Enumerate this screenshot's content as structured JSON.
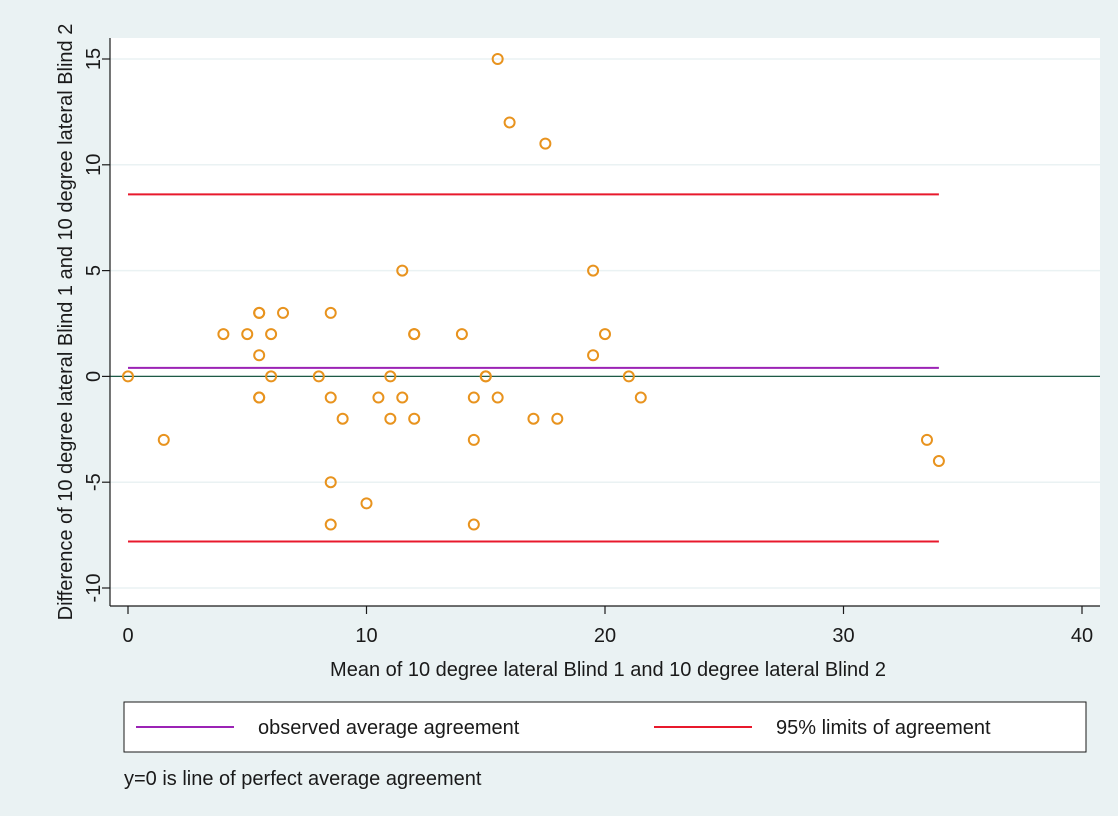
{
  "chart_data": {
    "type": "scatter",
    "title": "",
    "xlabel": "Mean of 10 degree lateral Blind 1 and 10 degree lateral Blind 2",
    "ylabel": "Difference of 10 degree lateral Blind 1 and 10 degree lateral Blind 2",
    "xlim": [
      0,
      40
    ],
    "ylim": [
      -10,
      15
    ],
    "xticks": [
      0,
      10,
      20,
      30,
      40
    ],
    "yticks": [
      -10,
      -5,
      0,
      5,
      10,
      15
    ],
    "grid": "horizontal",
    "legend_position": "bottom",
    "points": [
      [
        0,
        0
      ],
      [
        1.5,
        -3
      ],
      [
        4,
        2
      ],
      [
        5,
        2
      ],
      [
        5.5,
        3
      ],
      [
        5.5,
        3
      ],
      [
        5.5,
        1
      ],
      [
        5.5,
        -1
      ],
      [
        5.5,
        -1
      ],
      [
        6,
        2
      ],
      [
        6,
        0
      ],
      [
        6.5,
        3
      ],
      [
        8,
        0
      ],
      [
        8.5,
        3
      ],
      [
        8.5,
        -1
      ],
      [
        8.5,
        -5
      ],
      [
        8.5,
        -7
      ],
      [
        9,
        -2
      ],
      [
        10,
        -6
      ],
      [
        10.5,
        -1
      ],
      [
        11,
        0
      ],
      [
        11,
        -2
      ],
      [
        11.5,
        5
      ],
      [
        11.5,
        -1
      ],
      [
        12,
        2
      ],
      [
        12,
        2
      ],
      [
        12,
        -2
      ],
      [
        14,
        2
      ],
      [
        14.5,
        -1
      ],
      [
        14.5,
        -3
      ],
      [
        14.5,
        -7
      ],
      [
        15,
        0
      ],
      [
        15,
        0
      ],
      [
        15.5,
        15
      ],
      [
        15.5,
        -1
      ],
      [
        16,
        12
      ],
      [
        17,
        -2
      ],
      [
        17.5,
        11
      ],
      [
        18,
        -2
      ],
      [
        19.5,
        5
      ],
      [
        19.5,
        1
      ],
      [
        20,
        2
      ],
      [
        21,
        0
      ],
      [
        21.5,
        -1
      ],
      [
        33.5,
        -3
      ],
      [
        34,
        -4
      ]
    ],
    "reference_lines": [
      {
        "name": "observed average agreement",
        "y": 0.4,
        "x_range": [
          0,
          34
        ],
        "color": "#9b23b5"
      },
      {
        "name": "95% limits of agreement",
        "y": 8.6,
        "x_range": [
          0,
          34
        ],
        "color": "#e8192c"
      },
      {
        "name": "95% limits of agreement",
        "y": -7.8,
        "x_range": [
          0,
          34
        ],
        "color": "#e8192c"
      },
      {
        "name": "",
        "y": 0,
        "x_range": [
          0,
          40
        ],
        "color": "#1e5a46"
      }
    ],
    "legend": [
      {
        "label": "observed average agreement",
        "color": "#9b23b5"
      },
      {
        "label": "95% limits of agreement",
        "color": "#e8192c"
      }
    ],
    "note": "y=0 is line of perfect average agreement",
    "colors": {
      "points": "#e8931e",
      "plot_background": "#ffffff",
      "figure_background": "#eaf2f3",
      "grid": "#eaf2f3"
    }
  }
}
